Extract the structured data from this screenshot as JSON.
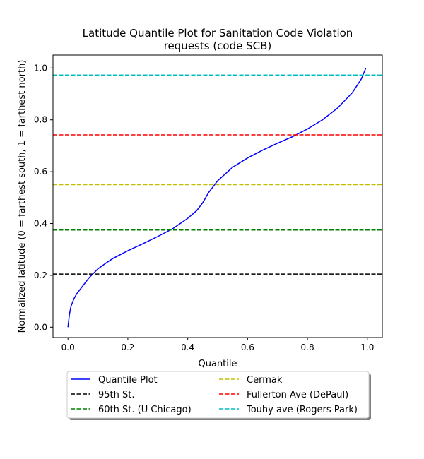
{
  "chart_data": {
    "type": "line",
    "title": "Latitude Quantile Plot for Sanitation Code Violation",
    "subtitle": "requests (code SCB)",
    "xlabel": "Quantile",
    "ylabel": "Normalized latitude (0 = farthest south, 1 = farthest north)",
    "xlim": [
      -0.05,
      1.05
    ],
    "ylim": [
      -0.04,
      1.05
    ],
    "xticks": [
      "0.0",
      "0.2",
      "0.4",
      "0.6",
      "0.8",
      "1.0"
    ],
    "yticks": [
      "0.0",
      "0.2",
      "0.4",
      "0.6",
      "0.8",
      "1.0"
    ],
    "grid": false,
    "legend_position": "below",
    "series": [
      {
        "name": "Quantile Plot",
        "color": "#0000ff",
        "style": "solid",
        "x": [
          0.0,
          0.005,
          0.01,
          0.02,
          0.03,
          0.05,
          0.07,
          0.1,
          0.13,
          0.15,
          0.2,
          0.25,
          0.3,
          0.35,
          0.4,
          0.43,
          0.45,
          0.47,
          0.5,
          0.55,
          0.6,
          0.65,
          0.7,
          0.75,
          0.8,
          0.85,
          0.9,
          0.95,
          0.98,
          0.995
        ],
        "y": [
          0.0,
          0.05,
          0.08,
          0.11,
          0.13,
          0.16,
          0.19,
          0.225,
          0.25,
          0.265,
          0.295,
          0.322,
          0.35,
          0.38,
          0.42,
          0.45,
          0.48,
          0.52,
          0.565,
          0.617,
          0.653,
          0.683,
          0.71,
          0.735,
          0.765,
          0.8,
          0.845,
          0.905,
          0.958,
          1.0
        ]
      },
      {
        "name": "95th St.",
        "color": "#000000",
        "style": "dashed",
        "hline": 0.205
      },
      {
        "name": "60th St. (U Chicago)",
        "color": "#008000",
        "style": "dashed",
        "hline": 0.375
      },
      {
        "name": "Cermak",
        "color": "#bfbf00",
        "style": "dashed",
        "hline": 0.55
      },
      {
        "name": "Fullerton Ave (DePaul)",
        "color": "#ff0000",
        "style": "dashed",
        "hline": 0.742
      },
      {
        "name": "Touhy ave (Rogers Park)",
        "color": "#00bfbf",
        "style": "dashed",
        "hline": 0.973
      }
    ]
  }
}
